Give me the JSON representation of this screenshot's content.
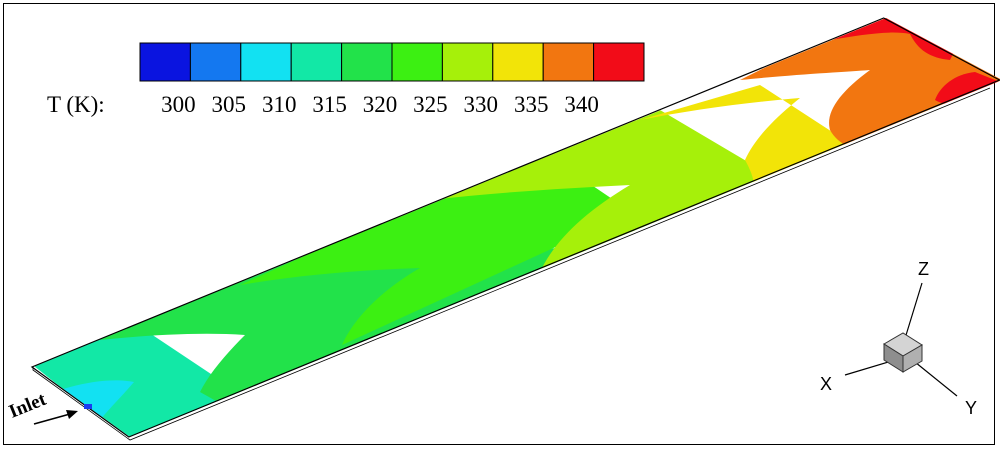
{
  "legend": {
    "title": "T (K):",
    "colors": [
      "#0a14e0",
      "#1478f0",
      "#12e1f2",
      "#12e8a6",
      "#22e24a",
      "#3cf012",
      "#a6f00a",
      "#f2e408",
      "#f27610",
      "#f20c18"
    ],
    "labels": [
      "300",
      "305",
      "310",
      "315",
      "320",
      "325",
      "330",
      "335",
      "340"
    ]
  },
  "annotation": {
    "inlet": "Inlet"
  },
  "triad": {
    "z": "Z",
    "x": "X",
    "y": "Y"
  }
}
